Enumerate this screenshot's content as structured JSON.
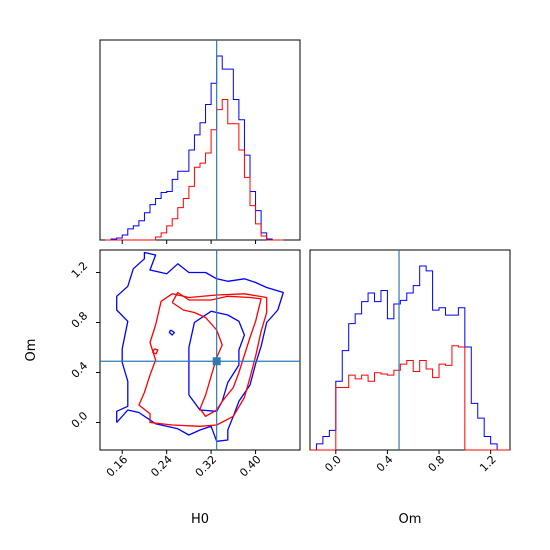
{
  "chart_data": {
    "type": "corner",
    "parameters": [
      "H0",
      "Om"
    ],
    "truths": {
      "H0": 0.33,
      "Om": 0.49
    },
    "colors": {
      "blue": "#0000ff",
      "red": "#ff0000",
      "truth": "#2f7ab2"
    },
    "panels": {
      "h0_hist": {
        "type": "step-histogram",
        "xlim": [
          0.12,
          0.48
        ],
        "bin_edges": [
          0.13,
          0.14,
          0.15,
          0.16,
          0.17,
          0.18,
          0.19,
          0.2,
          0.21,
          0.22,
          0.23,
          0.24,
          0.25,
          0.26,
          0.27,
          0.28,
          0.29,
          0.3,
          0.31,
          0.32,
          0.33,
          0.34,
          0.35,
          0.36,
          0.37,
          0.38,
          0.39,
          0.4,
          0.41,
          0.42,
          0.43,
          0.44,
          0.45
        ],
        "series": [
          {
            "color": "blue",
            "values": [
              0,
              1,
              2,
              5,
              11,
              14,
              19,
              27,
              35,
              41,
              47,
              48,
              60,
              68,
              68,
              89,
              104,
              116,
              134,
              155,
              182,
              169,
              169,
              139,
              119,
              84,
              48,
              29,
              7,
              1,
              0,
              0
            ]
          },
          {
            "color": "red",
            "values": [
              0,
              0,
              0,
              0,
              0,
              0,
              0,
              0,
              0,
              3,
              7,
              14,
              21,
              32,
              41,
              53,
              72,
              76,
              86,
              109,
              129,
              139,
              115,
              115,
              89,
              62,
              34,
              16,
              4,
              0,
              0,
              0
            ]
          }
        ]
      },
      "om_hist": {
        "type": "step-histogram",
        "xlim": [
          -0.2,
          1.35
        ],
        "bin_edges": [
          -0.2,
          -0.15,
          -0.1,
          -0.05,
          0.0,
          0.05,
          0.1,
          0.15,
          0.2,
          0.25,
          0.3,
          0.35,
          0.4,
          0.45,
          0.5,
          0.55,
          0.6,
          0.65,
          0.7,
          0.75,
          0.8,
          0.85,
          0.9,
          0.95,
          1.0,
          1.05,
          1.1,
          1.15,
          1.2,
          1.25,
          1.3,
          1.35
        ],
        "series": [
          {
            "color": "blue",
            "values": [
              0,
              5,
              11,
              16,
              56,
              81,
              103,
              111,
              121,
              128,
              121,
              130,
              107,
              119,
              122,
              128,
              134,
              150,
              146,
              114,
              116,
              110,
              110,
              116,
              84,
              38,
              26,
              11,
              5,
              0,
              0
            ]
          },
          {
            "color": "red",
            "values": [
              0,
              0,
              0,
              0,
              51,
              51,
              61,
              58,
              61,
              56,
              63,
              62,
              61,
              65,
              70,
              73,
              64,
              73,
              66,
              59,
              70,
              69,
              85,
              84,
              0,
              0,
              0,
              0,
              0,
              0,
              0
            ]
          }
        ]
      },
      "joint": {
        "type": "contour",
        "xlim": [
          0.12,
          0.48
        ],
        "ylim": [
          -0.22,
          1.38
        ],
        "series": [
          {
            "color": "blue",
            "paths": [
              [
                [
                  0.15,
                  0.0
                ],
                [
                  0.15,
                  0.09
                ],
                [
                  0.17,
                  0.13
                ],
                [
                  0.17,
                  0.33
                ],
                [
                  0.16,
                  0.48
                ],
                [
                  0.16,
                  0.59
                ],
                [
                  0.17,
                  0.81
                ],
                [
                  0.15,
                  0.9
                ],
                [
                  0.15,
                  1.01
                ],
                [
                  0.17,
                  1.09
                ],
                [
                  0.18,
                  1.23
                ],
                [
                  0.2,
                  1.31
                ],
                [
                  0.2,
                  1.36
                ],
                [
                  0.22,
                  1.34
                ],
                [
                  0.21,
                  1.22
                ],
                [
                  0.24,
                  1.19
                ],
                [
                  0.26,
                  1.27
                ],
                [
                  0.28,
                  1.2
                ],
                [
                  0.31,
                  1.2
                ],
                [
                  0.33,
                  1.15
                ],
                [
                  0.35,
                  1.13
                ],
                [
                  0.38,
                  1.15
                ],
                [
                  0.4,
                  1.12
                ],
                [
                  0.42,
                  1.08
                ],
                [
                  0.45,
                  1.04
                ],
                [
                  0.44,
                  0.9
                ],
                [
                  0.42,
                  0.8
                ],
                [
                  0.41,
                  0.61
                ],
                [
                  0.4,
                  0.47
                ],
                [
                  0.39,
                  0.3
                ],
                [
                  0.37,
                  0.17
                ],
                [
                  0.36,
                  0.05
                ],
                [
                  0.35,
                  -0.06
                ],
                [
                  0.35,
                  -0.14
                ],
                [
                  0.33,
                  -0.15
                ],
                [
                  0.32,
                  -0.03
                ],
                [
                  0.3,
                  -0.06
                ],
                [
                  0.28,
                  -0.1
                ],
                [
                  0.26,
                  -0.05
                ],
                [
                  0.22,
                  -0.01
                ],
                [
                  0.19,
                  0.08
                ],
                [
                  0.17,
                  0.1
                ],
                [
                  0.15,
                  0.0
                ]
              ],
              [
                [
                  0.28,
                  0.22
                ],
                [
                  0.28,
                  0.6
                ],
                [
                  0.29,
                  0.8
                ],
                [
                  0.32,
                  0.89
                ],
                [
                  0.35,
                  0.86
                ],
                [
                  0.37,
                  0.81
                ],
                [
                  0.38,
                  0.7
                ],
                [
                  0.37,
                  0.58
                ],
                [
                  0.37,
                  0.46
                ],
                [
                  0.35,
                  0.32
                ],
                [
                  0.34,
                  0.17
                ],
                [
                  0.33,
                  0.09
                ],
                [
                  0.3,
                  0.1
                ],
                [
                  0.28,
                  0.22
                ]
              ],
              [
                [
                  0.247,
                  0.74
                ],
                [
                  0.254,
                  0.72
                ],
                [
                  0.25,
                  0.7
                ],
                [
                  0.245,
                  0.72
                ],
                [
                  0.247,
                  0.74
                ]
              ]
            ]
          },
          {
            "color": "red",
            "paths": [
              [
                [
                  0.2,
                  0.24
                ],
                [
                  0.19,
                  0.14
                ],
                [
                  0.21,
                  0.07
                ],
                [
                  0.21,
                  0.0
                ],
                [
                  0.25,
                  -0.02
                ],
                [
                  0.3,
                  -0.03
                ],
                [
                  0.33,
                  -0.02
                ],
                [
                  0.36,
                  0.05
                ],
                [
                  0.38,
                  0.2
                ],
                [
                  0.39,
                  0.36
                ],
                [
                  0.4,
                  0.53
                ],
                [
                  0.41,
                  0.73
                ],
                [
                  0.42,
                  0.88
                ],
                [
                  0.42,
                  1.0
                ],
                [
                  0.38,
                  1.03
                ],
                [
                  0.33,
                  1.02
                ],
                [
                  0.28,
                  1.0
                ],
                [
                  0.25,
                  1.03
                ],
                [
                  0.23,
                  0.97
                ],
                [
                  0.22,
                  0.78
                ],
                [
                  0.21,
                  0.64
                ],
                [
                  0.22,
                  0.5
                ],
                [
                  0.21,
                  0.38
                ],
                [
                  0.2,
                  0.24
                ]
              ],
              [
                [
                  0.25,
                  0.96
                ],
                [
                  0.26,
                  1.04
                ],
                [
                  0.28,
                  0.98
                ],
                [
                  0.32,
                  0.98
                ],
                [
                  0.35,
                  1.01
                ],
                [
                  0.39,
                  1.0
                ],
                [
                  0.41,
                  0.99
                ],
                [
                  0.4,
                  0.81
                ],
                [
                  0.39,
                  0.68
                ],
                [
                  0.38,
                  0.54
                ],
                [
                  0.37,
                  0.4
                ],
                [
                  0.36,
                  0.28
                ],
                [
                  0.34,
                  0.17
                ],
                [
                  0.33,
                  0.1
                ],
                [
                  0.31,
                  0.05
                ],
                [
                  0.3,
                  0.11
                ],
                [
                  0.31,
                  0.22
                ],
                [
                  0.32,
                  0.37
                ],
                [
                  0.33,
                  0.52
                ],
                [
                  0.34,
                  0.62
                ],
                [
                  0.33,
                  0.74
                ],
                [
                  0.31,
                  0.84
                ],
                [
                  0.29,
                  0.88
                ],
                [
                  0.27,
                  0.9
                ],
                [
                  0.25,
                  0.96
                ]
              ],
              [
                [
                  0.218,
                  0.59
                ],
                [
                  0.215,
                  0.56
                ],
                [
                  0.221,
                  0.55
                ],
                [
                  0.224,
                  0.58
                ],
                [
                  0.218,
                  0.59
                ]
              ]
            ]
          }
        ]
      }
    },
    "ticks": {
      "H0": [
        "0.16",
        "0.24",
        "0.32",
        "0.40"
      ],
      "Om": [
        "0.0",
        "0.4",
        "0.8",
        "1.2"
      ]
    },
    "ticks_values": {
      "H0": [
        0.16,
        0.24,
        0.32,
        0.4
      ],
      "Om": [
        0.0,
        0.4,
        0.8,
        1.2
      ]
    },
    "axis_labels": {
      "x_left": "H0",
      "x_right": "Om",
      "y_joint": "Om"
    }
  }
}
